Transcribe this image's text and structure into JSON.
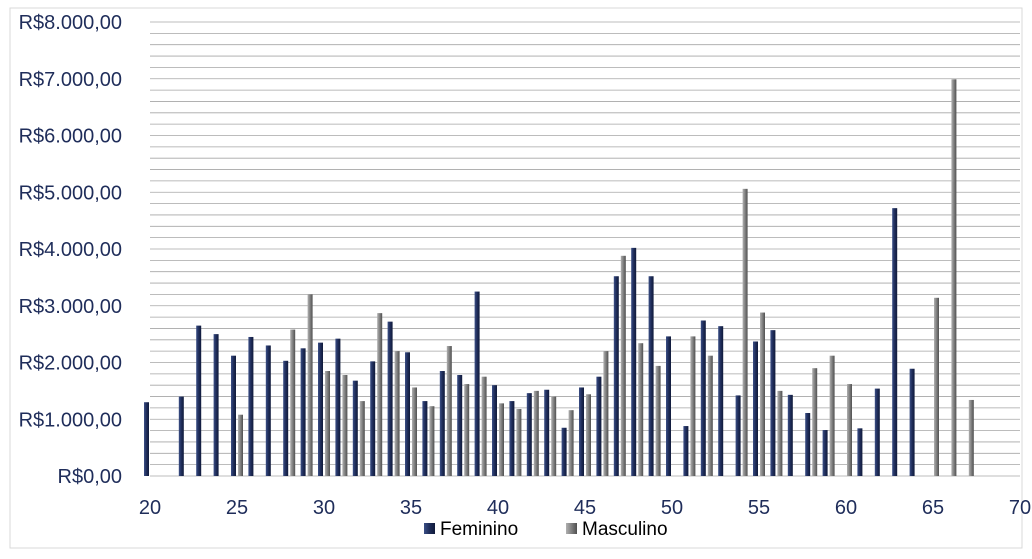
{
  "chart_data": {
    "type": "bar",
    "title": "",
    "xlabel": "",
    "ylabel": "",
    "xlim": [
      20,
      70
    ],
    "ylim": [
      0,
      8000
    ],
    "x_ticks": [
      20,
      25,
      30,
      35,
      40,
      45,
      50,
      55,
      60,
      65,
      70
    ],
    "x_tick_labels": [
      "20",
      "25",
      "30",
      "35",
      "40",
      "45",
      "50",
      "55",
      "60",
      "65",
      "70"
    ],
    "y_ticks": [
      0,
      1000,
      2000,
      3000,
      4000,
      5000,
      6000,
      7000,
      8000
    ],
    "y_tick_labels": [
      "R$0,00",
      "R$1.000,00",
      "R$2.000,00",
      "R$3.000,00",
      "R$4.000,00",
      "R$5.000,00",
      "R$6.000,00",
      "R$7.000,00",
      "R$8.000,00"
    ],
    "grid": true,
    "minor_grid_step": 200,
    "legend_position": "bottom",
    "series": [
      {
        "name": "Feminino",
        "color": "#1f2d5a",
        "points": [
          [
            20,
            1300
          ],
          [
            22,
            1400
          ],
          [
            23,
            2650
          ],
          [
            24,
            2500
          ],
          [
            25,
            2120
          ],
          [
            26,
            2450
          ],
          [
            27,
            2300
          ],
          [
            28,
            2030
          ],
          [
            29,
            2250
          ],
          [
            30,
            2350
          ],
          [
            31,
            2420
          ],
          [
            32,
            1680
          ],
          [
            33,
            2020
          ],
          [
            34,
            2720
          ],
          [
            35,
            2180
          ],
          [
            36,
            1320
          ],
          [
            37,
            1850
          ],
          [
            38,
            1780
          ],
          [
            39,
            3250
          ],
          [
            40,
            1600
          ],
          [
            41,
            1320
          ],
          [
            42,
            1460
          ],
          [
            43,
            1520
          ],
          [
            44,
            850
          ],
          [
            45,
            1560
          ],
          [
            46,
            1750
          ],
          [
            47,
            3520
          ],
          [
            48,
            4020
          ],
          [
            49,
            3520
          ],
          [
            50,
            2460
          ],
          [
            51,
            880
          ],
          [
            52,
            2740
          ],
          [
            53,
            2640
          ],
          [
            54,
            1420
          ],
          [
            55,
            2370
          ],
          [
            56,
            2570
          ],
          [
            57,
            1430
          ],
          [
            58,
            1110
          ],
          [
            59,
            810
          ],
          [
            61,
            840
          ],
          [
            62,
            1540
          ],
          [
            63,
            4720
          ],
          [
            64,
            1890
          ]
        ]
      },
      {
        "name": "Masculino",
        "color": "#808080",
        "points": [
          [
            25,
            1080
          ],
          [
            28,
            2580
          ],
          [
            29,
            3200
          ],
          [
            30,
            1850
          ],
          [
            31,
            1780
          ],
          [
            32,
            1320
          ],
          [
            33,
            2870
          ],
          [
            34,
            2200
          ],
          [
            35,
            1560
          ],
          [
            36,
            1230
          ],
          [
            37,
            2290
          ],
          [
            38,
            1620
          ],
          [
            39,
            1750
          ],
          [
            40,
            1280
          ],
          [
            41,
            1180
          ],
          [
            42,
            1500
          ],
          [
            43,
            1400
          ],
          [
            44,
            1160
          ],
          [
            45,
            1440
          ],
          [
            46,
            2200
          ],
          [
            47,
            3880
          ],
          [
            48,
            2340
          ],
          [
            49,
            1940
          ],
          [
            51,
            2460
          ],
          [
            52,
            2120
          ],
          [
            54,
            5060
          ],
          [
            55,
            2880
          ],
          [
            56,
            1500
          ],
          [
            58,
            1900
          ],
          [
            59,
            2120
          ],
          [
            60,
            1620
          ],
          [
            65,
            3140
          ],
          [
            66,
            6990
          ],
          [
            67,
            1340
          ]
        ]
      }
    ]
  }
}
